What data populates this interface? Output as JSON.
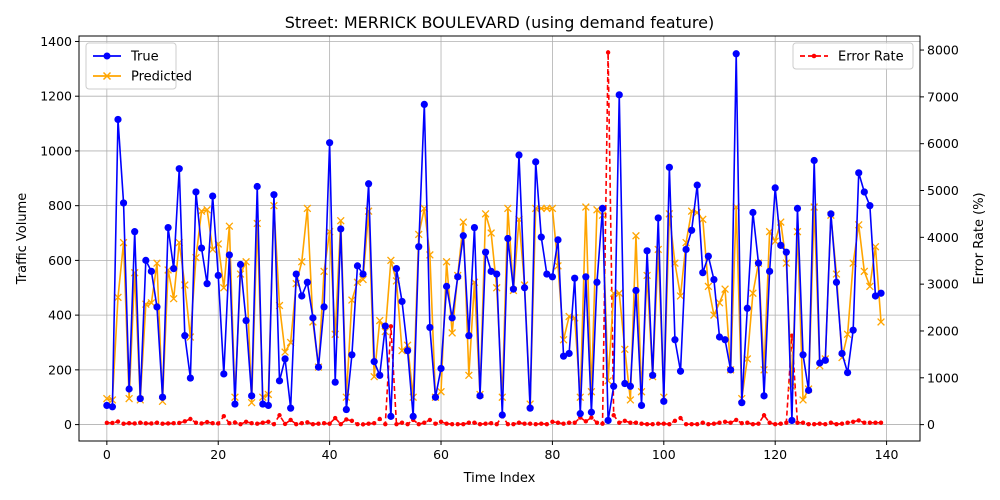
{
  "chart_data": {
    "type": "line",
    "title": "Street: MERRICK BOULEVARD (using demand feature)",
    "xlabel": "Time Index",
    "ylabel_left": "Traffic Volume",
    "ylabel_right": "Error Rate (%)",
    "xlim": [
      -5,
      146
    ],
    "ylim_left": [
      -60,
      1420
    ],
    "ylim_right": [
      -350,
      8300
    ],
    "x_ticks": [
      0,
      20,
      40,
      60,
      80,
      100,
      120,
      140
    ],
    "y_ticks_left": [
      0,
      200,
      400,
      600,
      800,
      1000,
      1200,
      1400
    ],
    "y_ticks_right": [
      0,
      1000,
      2000,
      3000,
      4000,
      5000,
      6000,
      7000,
      8000
    ],
    "grid": true,
    "legend_left_position": "upper-left",
    "legend_right_position": "upper-right",
    "series": [
      {
        "name": "True",
        "axis": "left",
        "color": "#0000ff",
        "marker": "circle",
        "values": [
          70,
          65,
          1115,
          810,
          130,
          705,
          95,
          600,
          560,
          430,
          100,
          720,
          570,
          935,
          325,
          170,
          850,
          645,
          515,
          835,
          545,
          185,
          620,
          75,
          585,
          380,
          105,
          870,
          75,
          70,
          840,
          160,
          240,
          60,
          550,
          470,
          520,
          390,
          210,
          430,
          1030,
          155,
          715,
          55,
          255,
          580,
          550,
          880,
          230,
          180,
          360,
          30,
          570,
          450,
          270,
          30,
          650,
          1170,
          355,
          100,
          205,
          505,
          390,
          540,
          690,
          325,
          720,
          105,
          630,
          560,
          550,
          35,
          680,
          495,
          985,
          500,
          60,
          960,
          685,
          550,
          540,
          675,
          250,
          260,
          535,
          40,
          540,
          45,
          520,
          790,
          15,
          140,
          1205,
          150,
          140,
          490,
          70,
          635,
          180,
          755,
          85,
          940,
          310,
          195,
          640,
          710,
          875,
          555,
          615,
          530,
          320,
          310,
          200,
          1355,
          80,
          425,
          775,
          590,
          105,
          560,
          865,
          655,
          630,
          15,
          790,
          255,
          125,
          965,
          225,
          235,
          770,
          520,
          260,
          190,
          345,
          920,
          850,
          800,
          470,
          480
        ]
      },
      {
        "name": "Predicted",
        "axis": "left",
        "color": "#ffa500",
        "marker": "x",
        "values": [
          95,
          90,
          465,
          665,
          95,
          555,
          90,
          440,
          445,
          590,
          85,
          565,
          460,
          665,
          510,
          320,
          610,
          780,
          785,
          640,
          660,
          500,
          725,
          100,
          550,
          595,
          80,
          735,
          100,
          110,
          800,
          435,
          265,
          300,
          515,
          595,
          790,
          375,
          210,
          560,
          705,
          330,
          745,
          100,
          455,
          520,
          530,
          780,
          175,
          380,
          340,
          600,
          525,
          270,
          290,
          100,
          695,
          790,
          620,
          100,
          120,
          595,
          335,
          545,
          740,
          180,
          520,
          110,
          770,
          700,
          500,
          100,
          790,
          490,
          750,
          510,
          75,
          790,
          790,
          790,
          790,
          580,
          310,
          395,
          390,
          100,
          795,
          120,
          785,
          765,
          160,
          480,
          480,
          275,
          90,
          690,
          120,
          545,
          175,
          640,
          100,
          770,
          590,
          470,
          665,
          780,
          775,
          750,
          505,
          400,
          445,
          495,
          200,
          795,
          95,
          240,
          480,
          590,
          200,
          705,
          670,
          740,
          590,
          140,
          705,
          90,
          130,
          795,
          215,
          240,
          765,
          550,
          245,
          330,
          590,
          730,
          560,
          505,
          650,
          375
        ]
      },
      {
        "name": "Error Rate",
        "axis": "right",
        "color": "#ff0000",
        "marker": "dot",
        "linestyle": "dashed",
        "values": [
          38,
          35,
          65,
          20,
          30,
          25,
          40,
          28,
          25,
          40,
          20,
          25,
          30,
          35,
          70,
          120,
          40,
          25,
          55,
          30,
          25,
          180,
          30,
          45,
          10,
          60,
          30,
          20,
          40,
          60,
          10,
          200,
          15,
          100,
          10,
          30,
          50,
          10,
          20,
          30,
          20,
          140,
          10,
          110,
          80,
          10,
          5,
          20,
          30,
          120,
          10,
          2100,
          10,
          40,
          10,
          100,
          10,
          40,
          100,
          20,
          60,
          20,
          10,
          10,
          10,
          40,
          40,
          10,
          20,
          30,
          10,
          180,
          10,
          10,
          40,
          20,
          20,
          10,
          20,
          10,
          60,
          40,
          20,
          40,
          40,
          150,
          70,
          150,
          40,
          20,
          7950,
          200,
          40,
          80,
          40,
          40,
          20,
          10,
          10,
          20,
          20,
          10,
          80,
          140,
          10,
          10,
          10,
          40,
          10,
          20,
          40,
          60,
          40,
          100,
          30,
          40,
          10,
          20,
          200,
          40,
          10,
          20,
          40,
          1900,
          40,
          40,
          10,
          10,
          20,
          10,
          40,
          10,
          20,
          40,
          60,
          90,
          40,
          40,
          40,
          40
        ]
      }
    ]
  }
}
